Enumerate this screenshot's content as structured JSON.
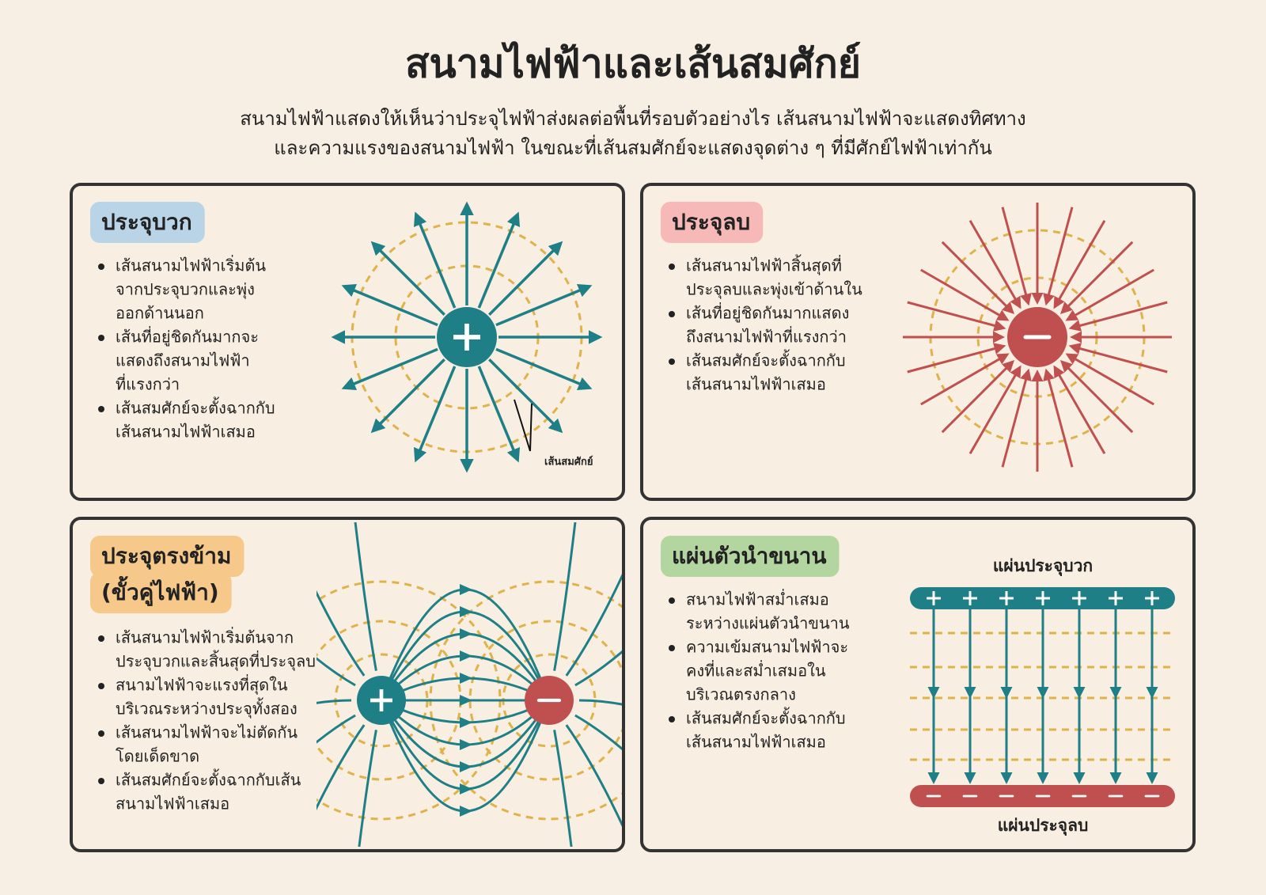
{
  "header": {
    "title": "สนามไฟฟ้าและเส้นสมศักย์",
    "subtitle": [
      "สนามไฟฟ้าแสดงให้เห็นว่าประจุไฟฟ้าส่งผลต่อพื้นที่รอบตัวอย่างไร เส้นสนามไฟฟ้าจะแสดงทิศทาง",
      "และความแรงของสนามไฟฟ้า ในขณะที่เส้นสมศักย์จะแสดงจุดต่าง ๆ ที่มีศักย์ไฟฟ้าเท่ากัน"
    ]
  },
  "panels": [
    {
      "title": [
        "ประจุบวก"
      ],
      "bullets": [
        [
          "เส้นสนามไฟฟ้าเริ่มต้น",
          "จากประจุบวกและพุ่ง",
          "ออกด้านนอก"
        ],
        [
          "เส้นที่อยู่ชิดกันมากจะ",
          "แสดงถึงสนามไฟฟ้า",
          "ที่แรงกว่า"
        ],
        [
          "เส้นสมศักย์จะตั้งฉากกับ",
          "เส้นสนามไฟฟ้าเสมอ"
        ]
      ],
      "labels": [
        "เส้นสมศักย์"
      ]
    },
    {
      "title": [
        "ประจุลบ"
      ],
      "bullets": [
        [
          "เส้นสนามไฟฟ้าสิ้นสุดที่",
          "ประจุลบและพุ่งเข้าด้านใน"
        ],
        [
          "เส้นที่อยู่ชิดกันมากแสดง",
          "ถึงสนามไฟฟ้าที่แรงกว่า"
        ],
        [
          "เส้นสมศักย์จะตั้งฉากกับ",
          "เส้นสนามไฟฟ้าเสมอ"
        ]
      ]
    },
    {
      "title": [
        "ประจุตรงข้าม",
        "(ขั้วคู่ไฟฟ้า)"
      ],
      "bullets": [
        [
          "เส้นสนามไฟฟ้าเริ่มต้นจาก",
          "ประจุบวกและสิ้นสุดที่ประจุลบ"
        ],
        [
          "สนามไฟฟ้าจะแรงที่สุดใน",
          "บริเวณระหว่างประจุทั้งสอง"
        ],
        [
          "เส้นสนามไฟฟ้าจะไม่ตัดกัน",
          "โดยเด็ดขาด"
        ],
        [
          "เส้นสมศักย์จะตั้งฉากกับเส้น",
          "สนามไฟฟ้าเสมอ"
        ]
      ]
    },
    {
      "title": [
        "แผ่นตัวนำขนาน"
      ],
      "bullets": [
        [
          "สนามไฟฟ้าสม่ำเสมอ",
          "ระหว่างแผ่นตัวนำขนาน"
        ],
        [
          "ความเข้มสนามไฟฟ้าจะ",
          "คงที่และสม่ำเสมอใน",
          "บริเวณตรงกลาง"
        ],
        [
          "เส้นสมศักย์จะตั้งฉากกับ",
          "เส้นสนามไฟฟ้าเสมอ"
        ]
      ],
      "labels": [
        "แผ่นประจุบวก",
        "แผ่นประจุลบ"
      ]
    }
  ]
}
